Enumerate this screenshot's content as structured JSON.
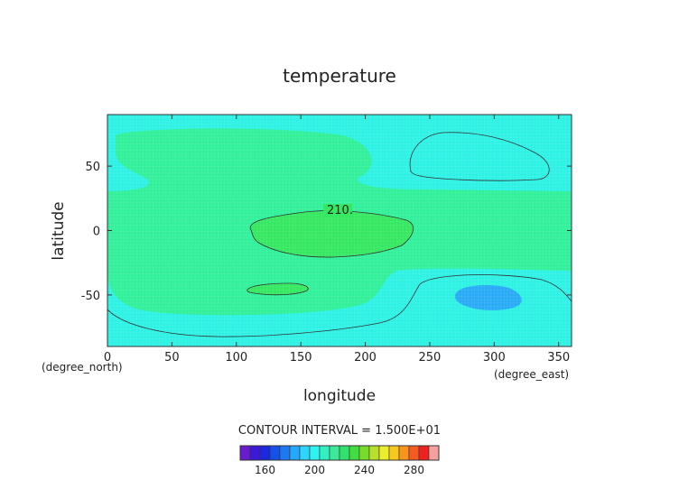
{
  "chart_data": {
    "type": "heatmap",
    "title": "temperature",
    "xlabel": "longitude",
    "ylabel": "latitude",
    "x_unit": "(degree_east)",
    "y_unit": "(degree_north)",
    "xlim": [
      0,
      360
    ],
    "ylim": [
      -90,
      90
    ],
    "x_ticks": [
      0,
      50,
      100,
      150,
      200,
      250,
      300,
      350
    ],
    "y_ticks": [
      -50,
      0,
      50
    ],
    "contour_interval_label": "CONTOUR INTERVAL = 1.500E+01",
    "contour_labels": [
      {
        "text": "210.",
        "lon": 170,
        "lat": 15
      }
    ],
    "colorbar": {
      "tick_labels": [
        "160",
        "200",
        "240",
        "280"
      ],
      "colors": [
        "#6a1bd0",
        "#3a1ad8",
        "#1a28e0",
        "#1450ea",
        "#1d78f2",
        "#26a8f8",
        "#2fd4fa",
        "#30f2f0",
        "#34f0c0",
        "#3ce89a",
        "#32e06e",
        "#40dc40",
        "#78dc2a",
        "#b8e02a",
        "#ecec2e",
        "#f8c81e",
        "#f8941c",
        "#f45a22",
        "#ee2222",
        "#f2a0a0"
      ]
    },
    "regions": [
      {
        "name": "background",
        "value": 205,
        "color": "#2cf2e4"
      },
      {
        "name": "green-band-west",
        "value": 215,
        "color": "#30f09a"
      },
      {
        "name": "green-band-center",
        "value": 215,
        "color": "#30f09a"
      },
      {
        "name": "green-south",
        "value": 215,
        "color": "#30f09a"
      },
      {
        "name": "warm-center",
        "value": 225,
        "color": "#34e860"
      },
      {
        "name": "warm-south",
        "value": 225,
        "color": "#34e860"
      },
      {
        "name": "cold-south",
        "value": 190,
        "color": "#28aaf6"
      }
    ]
  }
}
